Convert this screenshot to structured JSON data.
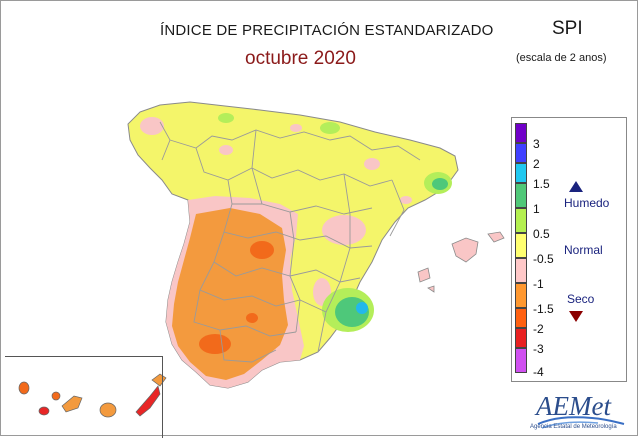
{
  "header": {
    "title": "ÍNDICE DE PRECIPITACIÓN ESTANDARIZADO",
    "period": "octubre 2020",
    "index_name": "SPI",
    "scale_note": "(escala de 2 anos)"
  },
  "legend": {
    "ticks": [
      "3",
      "2",
      "1.5",
      "1",
      "0.5",
      "-0.5",
      "-1",
      "-1.5",
      "-2",
      "-3",
      "-4"
    ],
    "colors": [
      "#7000c8",
      "#4040ff",
      "#20c8f0",
      "#50c878",
      "#b4f050",
      "#ffff70",
      "#ffc8c8",
      "#ff9830",
      "#ff6010",
      "#e82020",
      "#d050f0"
    ],
    "categories": {
      "wet": "Humedo",
      "normal": "Normal",
      "dry": "Seco"
    }
  },
  "colors": {
    "normal": "#f4f56a",
    "slightly_dry": "#f9c6c6",
    "dry": "#f39a3e",
    "very_dry": "#f26a1b",
    "extremely_dry": "#e82626",
    "slightly_wet": "#b4ee5a",
    "wet": "#4ec87a",
    "very_wet": "#22b8ec",
    "sea": "#ffffff",
    "border": "#9a9a9a"
  },
  "logo": {
    "name": "AEMet",
    "subtitle": "Agencia Estatal de Meteorología"
  }
}
